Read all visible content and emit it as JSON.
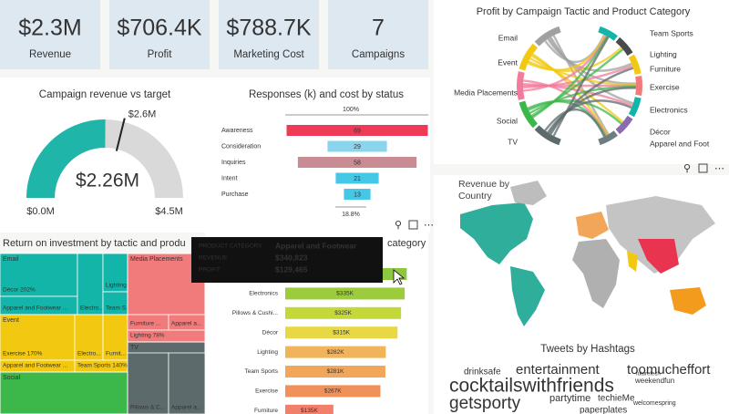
{
  "kpis": [
    {
      "value": "$2.3M",
      "label": "Revenue"
    },
    {
      "value": "$706.4K",
      "label": "Profit"
    },
    {
      "value": "$788.7K",
      "label": "Marketing Cost"
    },
    {
      "value": "7",
      "label": "Campaigns"
    }
  ],
  "chart_data": [
    {
      "type": "gauge",
      "title": "Campaign revenue vs target",
      "ylim": [
        0,
        4.5
      ],
      "yticks": [
        {
          "value": 0,
          "label": "$0.0M"
        },
        {
          "value": 4.5,
          "label": "$4.5M"
        }
      ],
      "value": 2.26,
      "value_label": "$2.26M",
      "target": 2.6,
      "target_label": "$2.6M",
      "color": "#1fb5a9",
      "track_color": "#d9d9d9"
    },
    {
      "type": "funnel",
      "title": "Responses (k) and cost by status",
      "top_label": "100%",
      "bottom_label": "18.8%",
      "categories": [
        "Awareness",
        "Consideration",
        "Inquiries",
        "Intent",
        "Purchase"
      ],
      "values": [
        69,
        29,
        58,
        21,
        13
      ],
      "colors": [
        "#ee3a57",
        "#8ad4ee",
        "#c98c94",
        "#45c8e6",
        "#45c8e6"
      ]
    },
    {
      "type": "chord",
      "title": "Profit by Campaign Tactic and Product Category",
      "sources": [
        "Email",
        "Event",
        "Media Placements",
        "Social",
        "TV"
      ],
      "source_colors": [
        "#a0a0a0",
        "#f2c811",
        "#f17b9b",
        "#3cb84a",
        "#5c6a6c"
      ],
      "targets": [
        "Team Sports",
        "Lighting",
        "Furniture",
        "Exercise",
        "Electronics",
        "Décor",
        "Apparel and Foot"
      ],
      "target_colors": [
        "#12b5a8",
        "#4a4a4a",
        "#f2c811",
        "#f17b7b",
        "#12b5a8",
        "#8a6bb0",
        "#6f7d80"
      ]
    },
    {
      "type": "map",
      "title": "Revenue by Country"
    },
    {
      "type": "treemap",
      "title": "Return on investment by tactic and produ",
      "groups": [
        {
          "name": "Email",
          "color": "#12b5a8",
          "cells": [
            "Décor 202%",
            "Apparel and Footwear ...",
            "Electro...",
            "Lighting...",
            "Team S..."
          ]
        },
        {
          "name": "Event",
          "color": "#f2c811",
          "cells": [
            "Exercise 170%",
            "Electro...",
            "Furnit...",
            "Apparel and Footwear ...",
            "Team Sports 140%"
          ]
        },
        {
          "name": "Media Placements",
          "color": "#f17b7b",
          "cells": [
            "Furniture ...",
            "Apparel a...",
            "Lighting 78%"
          ]
        },
        {
          "name": "TV",
          "color": "#5c6a6c",
          "cells": [
            "Pillows & C...",
            "Apparel a..."
          ]
        },
        {
          "name": "Social",
          "color": "#3cb84a",
          "cells": []
        }
      ]
    },
    {
      "type": "bar",
      "orientation": "horizontal",
      "title": "category",
      "categories": [
        null,
        "Electronics",
        "Pillows & Cushi...",
        "Décor",
        "Lighting",
        "Team Sports",
        "Exercise",
        "Furniture"
      ],
      "values": [
        340.823,
        335,
        325,
        315,
        282,
        281,
        267,
        135
      ],
      "value_labels": [
        null,
        "$335K",
        "$325K",
        "$315K",
        "$282K",
        "$281K",
        "$267K",
        "$135K"
      ],
      "xlim": [
        0,
        345
      ],
      "colors": [
        "#8dc63f",
        "#9ccc3c",
        "#c5d83a",
        "#e8d844",
        "#f2b45a",
        "#f2a65a",
        "#f2905a",
        "#f27f6a"
      ]
    }
  ],
  "word_cloud": {
    "title": "Tweets by Hashtags",
    "words": [
      {
        "text": "drinksafe",
        "color": "#1fb5a9"
      },
      {
        "text": "entertainment",
        "color": "#e8344e"
      },
      {
        "text": "toomucheffort",
        "color": "#f29b1d"
      },
      {
        "text": "cocktailswithfriends",
        "color": "#1fb5a9"
      },
      {
        "text": "getsporty",
        "color": "#8a4fb3"
      },
      {
        "text": "partytime",
        "color": "#f29b9b"
      },
      {
        "text": "techieMe",
        "color": "#8a4fb3"
      },
      {
        "text": "weekendfun",
        "color": "#e8344e"
      },
      {
        "text": "futuretech",
        "color": "#8a4fb3"
      },
      {
        "text": "welcomespring",
        "color": "#e8344e"
      },
      {
        "text": "paperplates",
        "color": "#444444"
      }
    ]
  },
  "tooltip": {
    "rows": [
      {
        "label": "PRODUCT CATEGORY",
        "value": "Apparel and Footwear"
      },
      {
        "label": "REVENUE",
        "value": "$340,823"
      },
      {
        "label": "PROFIT",
        "value": "$129,465"
      }
    ]
  }
}
